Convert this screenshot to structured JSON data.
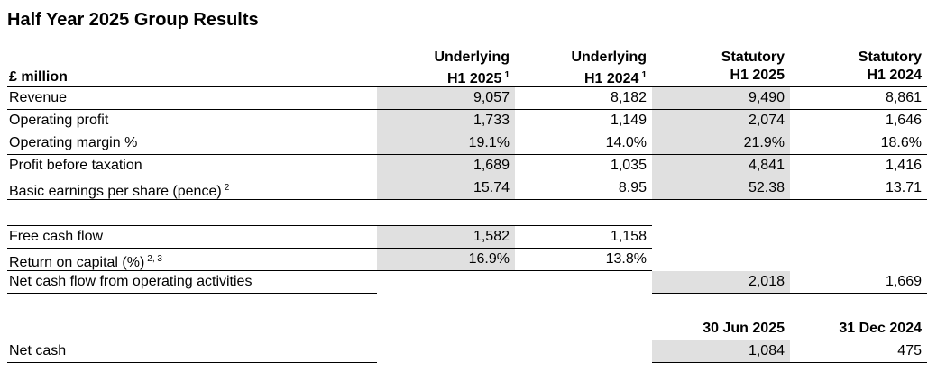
{
  "header": {
    "title": "Half Year 2025 Group Results"
  },
  "table": {
    "unit_label": "£ million",
    "columns": [
      {
        "line1": "Underlying",
        "line2": "H1 2025",
        "note": "1"
      },
      {
        "line1": "Underlying",
        "line2": "H1 2024",
        "note": "1"
      },
      {
        "line1": "Statutory",
        "line2": "H1 2025"
      },
      {
        "line1": "Statutory",
        "line2": "H1 2024"
      }
    ],
    "sections": [
      {
        "rows": [
          {
            "label": "Revenue",
            "cells": [
              "9,057",
              "8,182",
              "9,490",
              "8,861"
            ]
          },
          {
            "label": "Operating profit",
            "cells": [
              "1,733",
              "1,149",
              "2,074",
              "1,646"
            ]
          },
          {
            "label": "Operating margin %",
            "cells": [
              "19.1%",
              "14.0%",
              "21.9%",
              "18.6%"
            ]
          },
          {
            "label": "Profit before taxation",
            "cells": [
              "1,689",
              "1,035",
              "4,841",
              "1,416"
            ]
          },
          {
            "label": "Basic earnings per share (pence)",
            "note": "2",
            "cells": [
              "15.74",
              "8.95",
              "52.38",
              "13.71"
            ]
          }
        ]
      },
      {
        "rows": [
          {
            "label": "Free cash flow",
            "cells": [
              "1,582",
              "1,158",
              null,
              null
            ]
          },
          {
            "label": "Return on capital (%)",
            "note": "2, 3",
            "cells": [
              "16.9%",
              "13.8%",
              null,
              null
            ]
          },
          {
            "label": "Net cash flow from operating activities",
            "cells": [
              null,
              null,
              "2,018",
              "1,669"
            ]
          }
        ]
      },
      {
        "headings": [
          null,
          null,
          "30 Jun 2025",
          "31 Dec 2024"
        ],
        "rows": [
          {
            "label": "Net cash",
            "cells": [
              null,
              null,
              "1,084",
              "475"
            ]
          }
        ]
      }
    ]
  }
}
